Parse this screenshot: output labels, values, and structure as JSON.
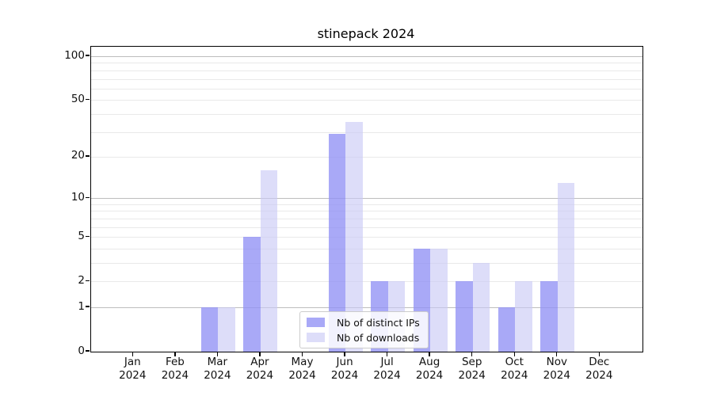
{
  "chart_data": {
    "type": "bar",
    "title": "stinepack 2024",
    "categories": [
      "Jan",
      "Feb",
      "Mar",
      "Apr",
      "May",
      "Jun",
      "Jul",
      "Aug",
      "Sep",
      "Oct",
      "Nov",
      "Dec"
    ],
    "x_sub_label": "2024",
    "series": [
      {
        "name": "Nb of distinct IPs",
        "color": "rgba(145,145,245,0.78)",
        "values": [
          0,
          0,
          1,
          5,
          0,
          29,
          2,
          4,
          2,
          1,
          2,
          0
        ]
      },
      {
        "name": "Nb of downloads",
        "color": "rgba(200,200,246,0.62)",
        "values": [
          0,
          0,
          1,
          16,
          0,
          35,
          2,
          4,
          3,
          2,
          13,
          0
        ]
      }
    ],
    "yscale": "log10(1+v)",
    "y_ticks": [
      0,
      1,
      2,
      5,
      10,
      20,
      50,
      100
    ],
    "minor_grid_values": [
      2,
      3,
      4,
      5,
      6,
      7,
      8,
      9,
      20,
      30,
      40,
      50,
      60,
      70,
      80,
      90
    ],
    "major_grid_values": [
      1,
      10,
      100
    ],
    "ylim": [
      0,
      116
    ],
    "grid": true,
    "legend": {
      "position": "lower center"
    }
  },
  "colors": {
    "bar_ips_flat": "#a9a9f7",
    "bar_downloads_flat": "#dcdcf8",
    "grid_minor": "#e9e9e9",
    "grid_major": "#bdbdbd",
    "axis": "#000000",
    "background": "#ffffff"
  }
}
